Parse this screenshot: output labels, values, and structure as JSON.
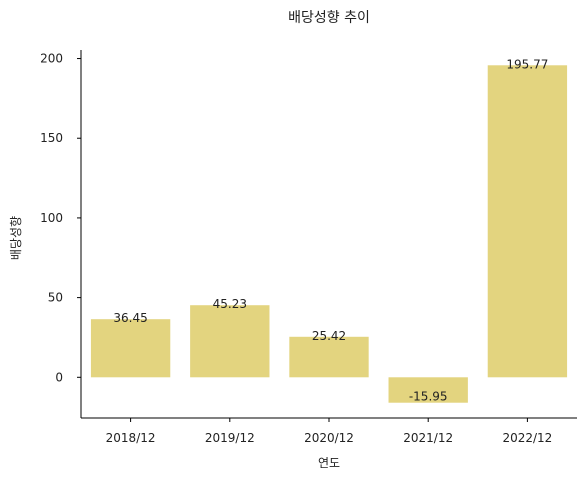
{
  "chart_data": {
    "type": "bar",
    "title": "배당성향 추이",
    "xlabel": "연도",
    "ylabel": "배당성향",
    "categories": [
      "2018/12",
      "2019/12",
      "2020/12",
      "2021/12",
      "2022/12"
    ],
    "values": [
      36.45,
      45.23,
      25.42,
      -15.95,
      195.77
    ],
    "data_labels": [
      "36.45",
      "45.23",
      "25.42",
      "-15.95",
      "195.77"
    ],
    "ylim": [
      -25.54,
      205.36
    ],
    "yticks": [
      0,
      50,
      100,
      150,
      200
    ],
    "ytick_labels": [
      "0",
      "50",
      "100",
      "150",
      "200"
    ],
    "bar_color": "#e3d47f",
    "grid": false,
    "legend": "none"
  }
}
